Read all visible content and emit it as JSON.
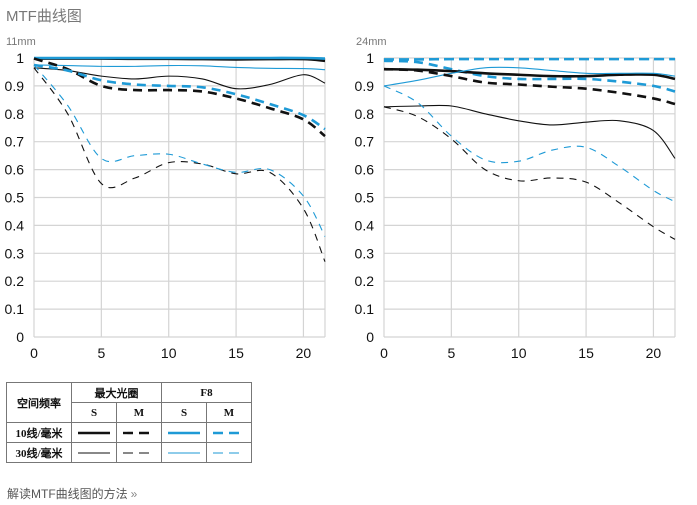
{
  "page": {
    "title": "MTF曲线图",
    "footer_link": "解读MTF曲线图的方法",
    "footer_chevron": "»"
  },
  "colors": {
    "black": "#111111",
    "blue": "#1e9ad6",
    "grid": "#d4d4d4"
  },
  "legend": {
    "header_freq": "空间频率",
    "group_max": "最大光圈",
    "group_f8": "F8",
    "s_label": "S",
    "m_label": "M",
    "rows": [
      {
        "label": "10线/毫米",
        "weight": "thick"
      },
      {
        "label": "30线/毫米",
        "weight": "thin"
      }
    ]
  },
  "chart_data": [
    {
      "type": "line",
      "title": "11mm",
      "xlabel": "",
      "ylabel": "",
      "xlim": [
        0,
        21.6
      ],
      "ylim": [
        0,
        1
      ],
      "xticks": [
        0,
        5,
        10,
        15,
        20
      ],
      "yticks": [
        0,
        0.1,
        0.2,
        0.3,
        0.4,
        0.5,
        0.6,
        0.7,
        0.8,
        0.9,
        1
      ],
      "ytick_labels": [
        "0",
        "0.1",
        "0.2",
        "0.3",
        "0.4",
        "0.5",
        "0.6",
        "0.7",
        "0.8",
        "0.9",
        "1"
      ],
      "grid": true,
      "x": [
        0,
        2.5,
        5,
        7.5,
        10,
        12.5,
        15,
        17.5,
        20,
        21.6
      ],
      "series": [
        {
          "name": "10线/毫米 最大光圈 S",
          "color": "black",
          "style": "solid",
          "weight": "thick",
          "values": [
            0.998,
            0.998,
            0.998,
            0.997,
            0.997,
            0.996,
            0.995,
            0.996,
            0.996,
            0.99
          ]
        },
        {
          "name": "10线/毫米 F8 S",
          "color": "blue",
          "style": "solid",
          "weight": "thick",
          "values": [
            1.0,
            1.0,
            1.0,
            1.0,
            1.0,
            1.0,
            1.0,
            1.0,
            1.0,
            0.998
          ]
        },
        {
          "name": "30线/毫米 F8 S",
          "color": "blue",
          "style": "solid",
          "weight": "thin",
          "values": [
            0.975,
            0.973,
            0.97,
            0.97,
            0.973,
            0.972,
            0.966,
            0.963,
            0.962,
            0.958
          ]
        },
        {
          "name": "30线/毫米 最大光圈 S",
          "color": "black",
          "style": "solid",
          "weight": "thin",
          "values": [
            0.965,
            0.955,
            0.935,
            0.925,
            0.935,
            0.925,
            0.89,
            0.905,
            0.94,
            0.91
          ]
        },
        {
          "name": "10线/毫米 最大光圈 M",
          "color": "black",
          "style": "dash",
          "weight": "thick",
          "values": [
            0.998,
            0.96,
            0.9,
            0.885,
            0.885,
            0.88,
            0.855,
            0.82,
            0.78,
            0.72
          ]
        },
        {
          "name": "10线/毫米 F8 M",
          "color": "blue",
          "style": "dash",
          "weight": "thick",
          "values": [
            0.975,
            0.955,
            0.92,
            0.905,
            0.9,
            0.895,
            0.87,
            0.835,
            0.795,
            0.745
          ]
        },
        {
          "name": "30线/毫米 最大光圈 M",
          "color": "black",
          "style": "dash",
          "weight": "thin",
          "values": [
            0.965,
            0.8,
            0.55,
            0.57,
            0.625,
            0.62,
            0.585,
            0.59,
            0.46,
            0.27
          ]
        },
        {
          "name": "30线/毫米 F8 M",
          "color": "blue",
          "style": "dash",
          "weight": "thin",
          "values": [
            0.975,
            0.83,
            0.64,
            0.65,
            0.655,
            0.62,
            0.59,
            0.6,
            0.505,
            0.36
          ]
        }
      ]
    },
    {
      "type": "line",
      "title": "24mm",
      "xlabel": "",
      "ylabel": "",
      "xlim": [
        0,
        21.6
      ],
      "ylim": [
        0,
        1
      ],
      "xticks": [
        0,
        5,
        10,
        15,
        20
      ],
      "yticks": [
        0,
        0.1,
        0.2,
        0.3,
        0.4,
        0.5,
        0.6,
        0.7,
        0.8,
        0.9,
        1
      ],
      "ytick_labels": [
        "0",
        "0.1",
        "0.2",
        "0.3",
        "0.4",
        "0.5",
        "0.6",
        "0.7",
        "0.8",
        "0.9",
        "1"
      ],
      "grid": true,
      "x": [
        0,
        2.5,
        5,
        7.5,
        10,
        12.5,
        15,
        17.5,
        20,
        21.6
      ],
      "series": [
        {
          "name": "10线/毫米 F8 M",
          "color": "blue",
          "style": "dash",
          "weight": "thick",
          "values": [
            0.99,
            0.985,
            0.96,
            0.935,
            0.925,
            0.925,
            0.925,
            0.915,
            0.9,
            0.88
          ]
        },
        {
          "name": "10线/毫米 F8 S",
          "color": "blue",
          "style": "dash-fine",
          "weight": "thick",
          "values": [
            0.995,
            0.995,
            0.996,
            0.996,
            0.996,
            0.996,
            0.996,
            0.996,
            0.996,
            0.996
          ]
        },
        {
          "name": "10线/毫米 最大光圈 S",
          "color": "black",
          "style": "solid",
          "weight": "thick",
          "values": [
            0.96,
            0.958,
            0.953,
            0.945,
            0.94,
            0.935,
            0.935,
            0.94,
            0.94,
            0.925
          ]
        },
        {
          "name": "30线/毫米 F8 S",
          "color": "blue",
          "style": "solid",
          "weight": "thin",
          "values": [
            0.9,
            0.92,
            0.945,
            0.965,
            0.965,
            0.955,
            0.945,
            0.945,
            0.945,
            0.935
          ]
        },
        {
          "name": "10线/毫米 最大光圈 M",
          "color": "black",
          "style": "dash",
          "weight": "thick",
          "values": [
            0.96,
            0.955,
            0.935,
            0.912,
            0.905,
            0.897,
            0.89,
            0.875,
            0.855,
            0.835
          ]
        },
        {
          "name": "30线/毫米 最大光圈 S",
          "color": "black",
          "style": "solid",
          "weight": "thin",
          "values": [
            0.825,
            0.828,
            0.828,
            0.8,
            0.775,
            0.76,
            0.77,
            0.775,
            0.74,
            0.64
          ]
        },
        {
          "name": "30线/毫米 最大光圈 M",
          "color": "black",
          "style": "dash",
          "weight": "thin",
          "values": [
            0.825,
            0.79,
            0.71,
            0.6,
            0.56,
            0.57,
            0.555,
            0.48,
            0.395,
            0.35
          ]
        },
        {
          "name": "30线/毫米 F8 M",
          "color": "blue",
          "style": "dash",
          "weight": "thin",
          "values": [
            0.9,
            0.84,
            0.72,
            0.635,
            0.63,
            0.67,
            0.68,
            0.61,
            0.525,
            0.485
          ]
        }
      ]
    }
  ]
}
